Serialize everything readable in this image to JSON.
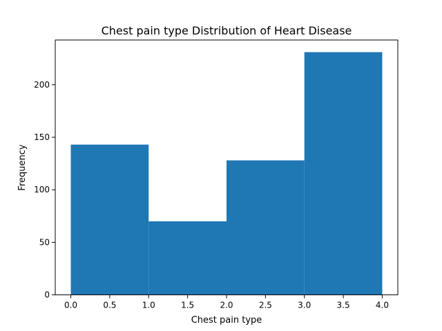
{
  "chart_data": {
    "type": "bar",
    "title": "Chest pain type Distribution of Heart Disease",
    "xlabel": "Chest pain type",
    "ylabel": "Frequency",
    "bins": [
      {
        "start": 0.0,
        "end": 1.0,
        "value": 143
      },
      {
        "start": 1.0,
        "end": 2.0,
        "value": 70
      },
      {
        "start": 2.0,
        "end": 3.0,
        "value": 128
      },
      {
        "start": 3.0,
        "end": 4.0,
        "value": 231
      }
    ],
    "xlim": [
      -0.2,
      4.2
    ],
    "ylim": [
      0,
      242.55
    ],
    "x_ticks": [
      0.0,
      0.5,
      1.0,
      1.5,
      2.0,
      2.5,
      3.0,
      3.5,
      4.0
    ],
    "x_tick_labels": [
      "0.0",
      "0.5",
      "1.0",
      "1.5",
      "2.0",
      "2.5",
      "3.0",
      "3.5",
      "4.0"
    ],
    "y_ticks": [
      0,
      50,
      100,
      150,
      200
    ],
    "y_tick_labels": [
      "0",
      "50",
      "100",
      "150",
      "200"
    ],
    "bar_color": "#1f77b4",
    "grid": false,
    "legend": false
  }
}
